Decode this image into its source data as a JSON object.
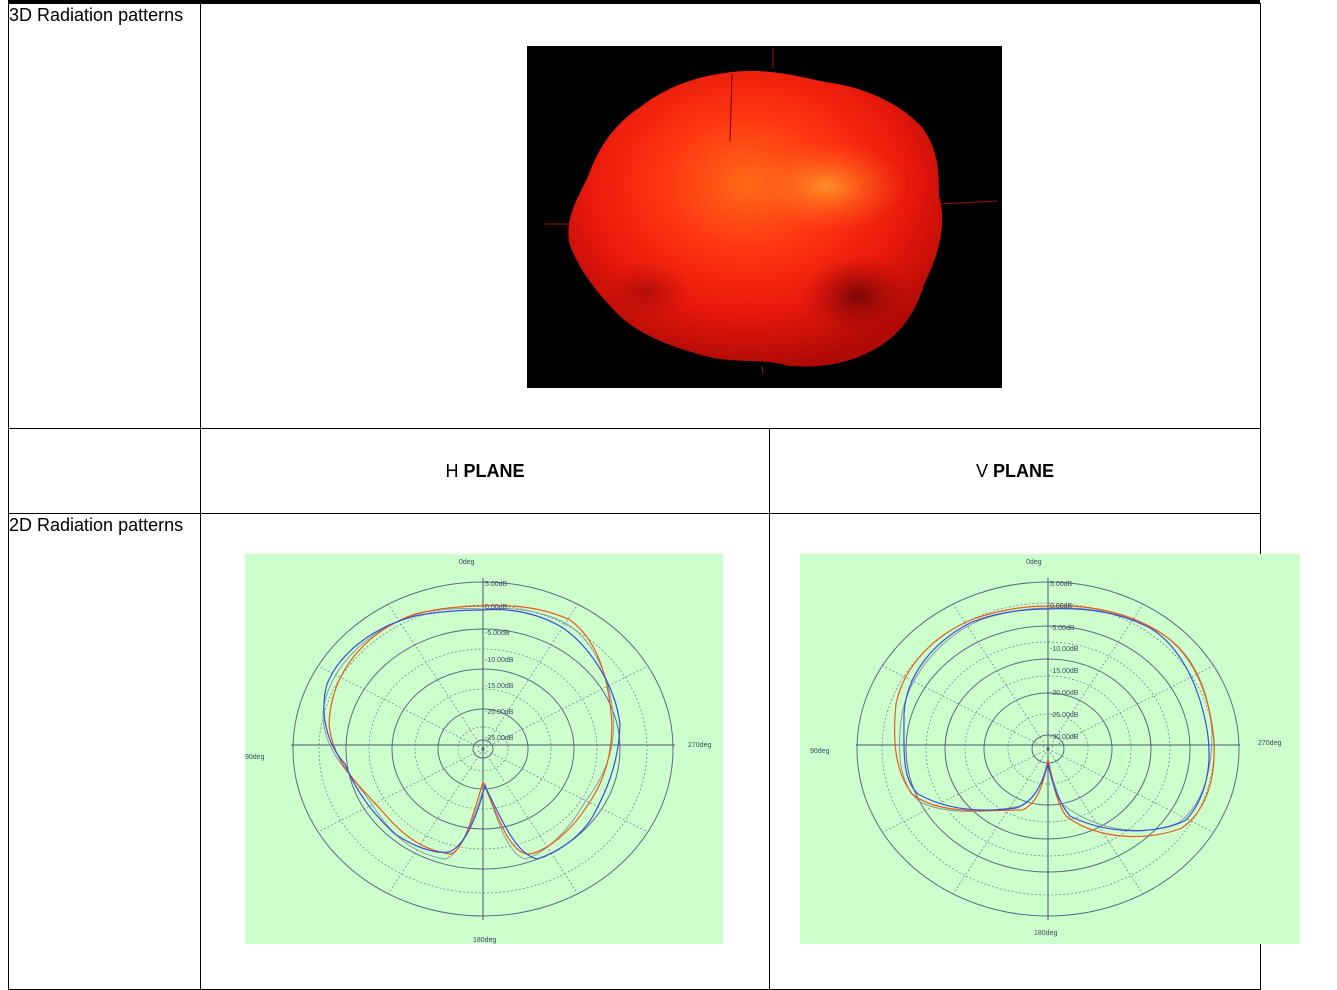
{
  "rows": {
    "radiation_3d_label": "3D Radiation patterns",
    "h_plane_prefix": "H",
    "h_plane_bold": "PLANE",
    "v_plane_prefix": "V",
    "v_plane_bold": "PLANE",
    "radiation_2d_label": "2D Radiation patterns"
  },
  "polar_h": {
    "top_label": "0deg",
    "left_label": "90deg",
    "right_label": "270deg",
    "bottom_label": "180deg",
    "ring_labels": [
      "5.00dB",
      "0.00dB",
      "-5.00dB",
      "-10.00dB",
      "-15.00dB",
      "-20.00dB",
      "-25.00dB"
    ]
  },
  "polar_v": {
    "top_label": "0deg",
    "left_label": "90deg",
    "right_label": "270deg",
    "bottom_label": "180deg",
    "ring_labels": [
      "5.00dB",
      "0.00dB",
      "-5.00dB",
      "-10.00dB",
      "-15.00dB",
      "-20.00dB",
      "-25.00dB",
      "-30.00dB"
    ]
  },
  "colors": {
    "plot_background": "#ccffcc",
    "trace_red": "#e85a1a",
    "trace_blue": "#3a4fd8",
    "trace_grey": "#8a9aa8",
    "radiation_red": "#ff2a10"
  }
}
